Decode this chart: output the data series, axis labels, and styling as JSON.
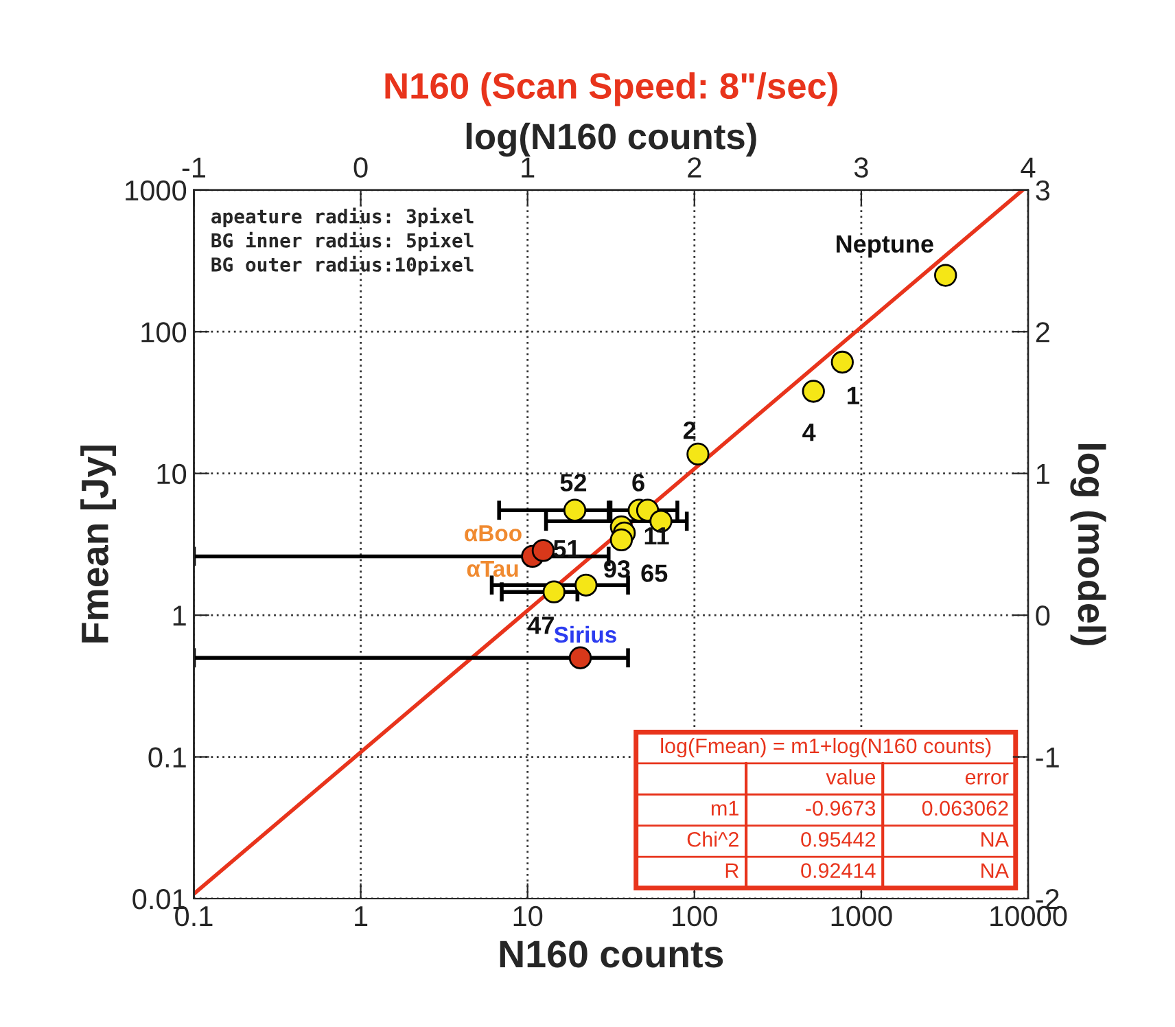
{
  "chart_data": {
    "type": "scatter",
    "title": "N160 (Scan Speed: 8\"/sec)",
    "xlabel": "N160 counts",
    "ylabel": "Fmean [Jy]",
    "x2label": "log(N160 counts)",
    "y2label": "log (model)",
    "log": "xy",
    "grid": true,
    "marker": "circle",
    "legend": false,
    "xlim": [
      0.1,
      10000
    ],
    "xticks": [
      0.1,
      1,
      10,
      100,
      1000,
      10000
    ],
    "ylim": [
      0.01,
      1000
    ],
    "yticks": [
      0.01,
      0.1,
      1,
      10,
      100,
      1000
    ],
    "x2lim": [
      -1,
      4
    ],
    "x2ticks": [
      -1,
      0,
      1,
      2,
      3,
      4
    ],
    "y2lim": [
      -2,
      3
    ],
    "y2ticks": [
      -2,
      -1,
      0,
      1,
      2,
      3
    ],
    "series": [
      {
        "color": "#f5e616",
        "x": [
          3200,
          770,
          517,
          105,
          19.2,
          46.6,
          52.4,
          63,
          36.5,
          38,
          36.5,
          14.4,
          22.4
        ],
        "values": [
          250,
          61,
          38,
          13.7,
          5.5,
          5.5,
          5.5,
          4.6,
          4.2,
          3.8,
          3.4,
          1.46,
          1.63
        ],
        "xerrors": [
          null,
          null,
          null,
          null,
          [
            6.75,
            31.4
          ],
          [
            30.6,
            79
          ],
          null,
          [
            12.9,
            90
          ],
          null,
          null,
          null,
          [
            7.0,
            19.9
          ],
          [
            6.1,
            40
          ]
        ]
      },
      {
        "name": "αBoo",
        "color": "#d8381a",
        "x": [
          10.7,
          12.4
        ],
        "values": [
          2.6,
          2.86
        ],
        "xerrors": [
          [
            0.1,
            30.6
          ],
          null
        ]
      },
      {
        "name": "Sirius",
        "color": "#d8381a",
        "x": [
          20.7
        ],
        "values": [
          0.5
        ],
        "xerrors": [
          [
            0.1,
            40
          ]
        ]
      },
      {
        "type": "line",
        "marker": "none",
        "color": "#e8341c",
        "x": [
          0.1,
          9275
        ],
        "values": [
          0.0108,
          1000
        ]
      }
    ],
    "annotations": [
      "apeature radius: 3pixel\nBG inner radius: 5pixel\nBG outer radius:10pixel",
      {
        "text": "Neptune",
        "x": 3200,
        "y": 250
      },
      {
        "text": "1",
        "x": 770,
        "y": 61
      },
      {
        "text": "4",
        "x": 517,
        "y": 38
      },
      {
        "text": "2",
        "x": 105,
        "y": 13.7
      },
      {
        "text": "52",
        "x": 19.2,
        "y": 5.5
      },
      {
        "text": "6",
        "x": 46.6,
        "y": 5.5
      },
      {
        "text": "51",
        "x": 36.5,
        "y": 4.2
      },
      {
        "text": "11",
        "x": 38,
        "y": 3.8
      },
      {
        "text": "65",
        "x": 36.5,
        "y": 3.4
      },
      {
        "text": "47",
        "x": 14.4,
        "y": 1.46
      },
      {
        "text": "93",
        "x": 22.4,
        "y": 1.63
      },
      {
        "text": "αTau",
        "x": 14.4,
        "y": 1.46
      },
      "log(Fmean) = m1+log(N160 counts)",
      "\tvalue\terror",
      "m1\t-0.9673\t0.063062",
      "Chi^2\t0.95442\tNA",
      "R\t0.92414\tNA"
    ]
  }
}
